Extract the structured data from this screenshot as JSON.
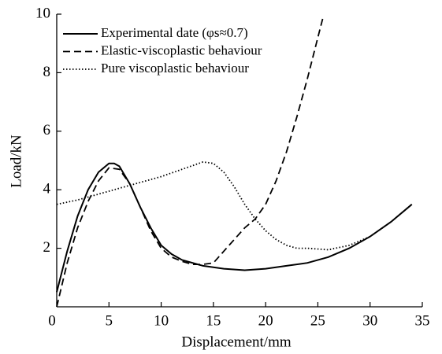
{
  "chart_data": {
    "type": "line",
    "xlabel": "Displacement/mm",
    "ylabel": "Load/kN",
    "xlim": [
      0,
      35
    ],
    "xticks": [
      0,
      5,
      10,
      15,
      20,
      25,
      30,
      35
    ],
    "ylim": [
      0,
      10
    ],
    "yticks": [
      2,
      4,
      6,
      8,
      10
    ],
    "legend": "upper left",
    "series": [
      {
        "name": "Experimental date (φs≈0.7)",
        "color": "#000000",
        "style": "solid",
        "x": [
          0,
          0.5,
          1,
          2,
          3,
          4,
          5,
          5.5,
          6,
          7,
          8,
          9,
          10,
          11,
          12,
          14,
          16,
          18,
          20,
          22,
          24,
          26,
          28,
          30,
          32,
          34
        ],
        "values": [
          0.5,
          1.2,
          1.9,
          3.1,
          4.0,
          4.6,
          4.9,
          4.9,
          4.8,
          4.2,
          3.4,
          2.7,
          2.1,
          1.8,
          1.6,
          1.4,
          1.3,
          1.25,
          1.3,
          1.4,
          1.5,
          1.7,
          2.0,
          2.4,
          2.9,
          3.5
        ]
      },
      {
        "name": "Elastic-viscoplastic behaviour",
        "color": "#000000",
        "style": "dashed",
        "x": [
          0,
          1,
          2,
          3,
          4,
          5,
          6,
          7,
          8,
          9,
          10,
          11,
          12,
          13,
          14,
          15,
          16,
          17,
          18,
          19,
          20,
          21,
          22,
          23,
          24,
          25,
          25.5
        ],
        "values": [
          0,
          1.5,
          2.7,
          3.6,
          4.3,
          4.75,
          4.7,
          4.2,
          3.4,
          2.6,
          2.0,
          1.7,
          1.55,
          1.45,
          1.45,
          1.5,
          1.9,
          2.3,
          2.7,
          3.0,
          3.5,
          4.3,
          5.3,
          6.5,
          7.8,
          9.2,
          9.9
        ]
      },
      {
        "name": "Pure viscoplastic behaviour",
        "color": "#000000",
        "style": "dotted",
        "x": [
          0,
          2,
          4,
          6,
          8,
          10,
          12,
          14,
          15,
          16,
          17,
          18,
          19,
          20,
          21,
          22,
          23,
          24,
          26,
          28,
          30,
          32,
          34
        ],
        "values": [
          3.5,
          3.65,
          3.85,
          4.05,
          4.25,
          4.45,
          4.7,
          4.95,
          4.9,
          4.6,
          4.1,
          3.5,
          3.0,
          2.6,
          2.3,
          2.1,
          2.0,
          2.0,
          1.95,
          2.1,
          2.4,
          2.9,
          3.5
        ]
      }
    ]
  }
}
